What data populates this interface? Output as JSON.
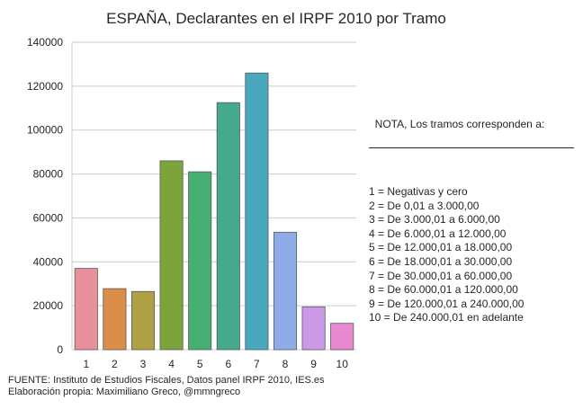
{
  "chart_data": {
    "type": "bar",
    "title": "ESPAÑA, Declarantes en el IRPF 2010 por Tramo",
    "xlabel": "",
    "ylabel": "",
    "categories": [
      "1",
      "2",
      "3",
      "4",
      "5",
      "6",
      "7",
      "8",
      "9",
      "10"
    ],
    "values": [
      37000,
      27800,
      26500,
      86000,
      81000,
      112500,
      126000,
      53500,
      19500,
      12000
    ],
    "colors": [
      "#E8919A",
      "#DB8E47",
      "#B0A044",
      "#7CA43A",
      "#47AF72",
      "#45A98E",
      "#49A8BE",
      "#8FABE8",
      "#CB99E8",
      "#E888CF"
    ],
    "ylim": [
      0,
      140000
    ],
    "yticks": [
      "0",
      "20000",
      "40000",
      "60000",
      "80000",
      "100000",
      "120000",
      "140000"
    ],
    "grid": true,
    "legend": "none"
  },
  "note": {
    "heading": "NOTA, Los tramos corresponden a:",
    "lines": [
      "1 = Negativas y cero",
      "2 = De 0,01 a 3.000,00",
      "3 = De 3.000,01 a 6.000,00",
      "4 = De 6.000,01 a 12.000,00",
      "5 = De 12.000,01 a 18.000,00",
      "6 = De 18.000,01 a 30.000,00",
      "7 = De 30.000,01 a 60.000,00",
      "8 = De 60.000,01 a 120.000,00",
      "9 = De 120.000,01 a 240.000,00",
      "10 = De 240.000,01 en adelante"
    ]
  },
  "source": {
    "line1": "FUENTE: Instituto de Estudios Fiscales, Datos panel IRPF 2010, IES.es",
    "line2": "Elaboración propia: Maximiliano Greco, @mmngreco"
  }
}
